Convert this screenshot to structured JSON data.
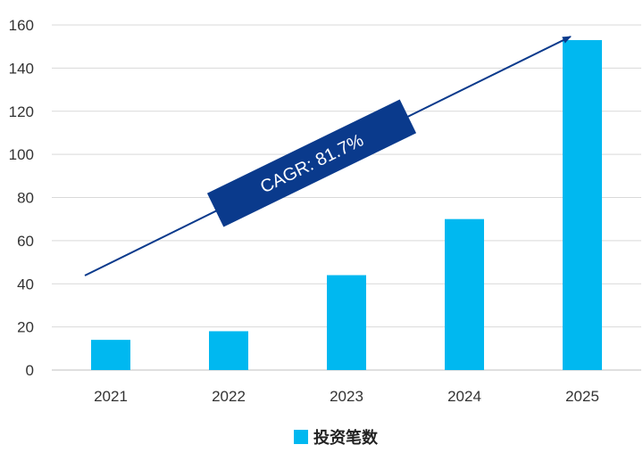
{
  "chart_data": {
    "type": "bar",
    "categories": [
      "2021",
      "2022",
      "2023",
      "2024",
      "2025"
    ],
    "series": [
      {
        "name": "投资笔数",
        "values": [
          14,
          18,
          44,
          70,
          153
        ]
      }
    ],
    "ylim": [
      0,
      160
    ],
    "yticks": [
      0,
      20,
      40,
      60,
      80,
      100,
      120,
      140,
      160
    ],
    "grid": true,
    "legend": "bottom",
    "bar_color": "#00B8F0",
    "annotation": {
      "text": "CAGR: 81.7%",
      "box_color": "#0A3A8C",
      "arrow_color": "#0A3A8C"
    },
    "title": "",
    "xlabel": "",
    "ylabel": ""
  }
}
